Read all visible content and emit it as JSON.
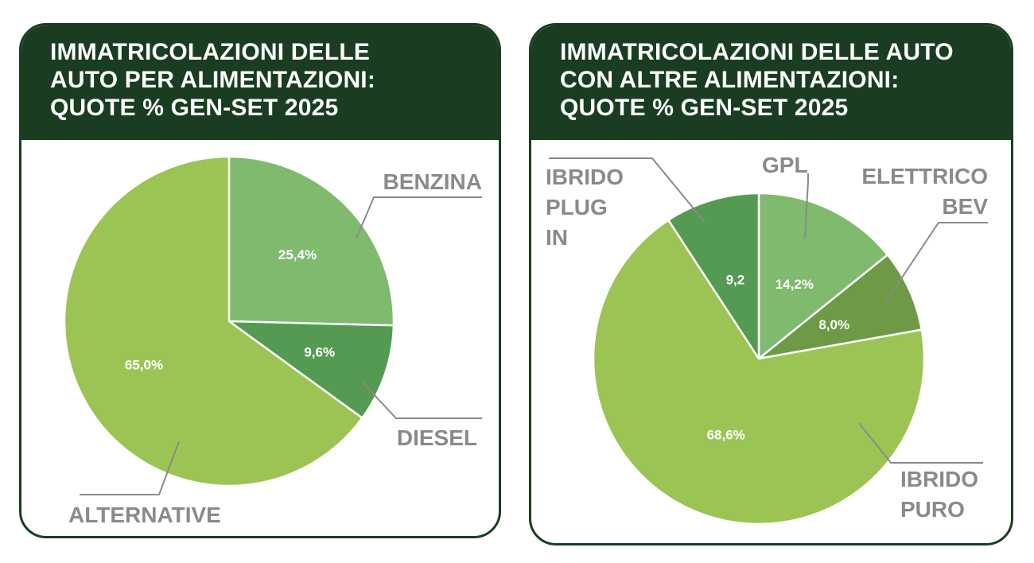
{
  "colors": {
    "header_bg": "#1a3d22",
    "label_gray": "#8a8a8a",
    "light_green": "#7fba6e",
    "mid_green": "#559a52",
    "olive_green": "#6f9a45",
    "lime_green": "#9cc455"
  },
  "chart_data": [
    {
      "type": "pie",
      "title_lines": [
        "IMMATRICOLAZIONI DELLE",
        "AUTO PER ALIMENTAZIONI:",
        "QUOTE % GEN-SET 2025"
      ],
      "slices": [
        {
          "label": "BENZINA",
          "value": 25.4,
          "value_label": "25,4%",
          "color": "#7fba6e"
        },
        {
          "label": "DIESEL",
          "value": 9.6,
          "value_label": "9,6%",
          "color": "#559a52"
        },
        {
          "label": "ALTERNATIVE",
          "value": 65.0,
          "value_label": "65,0%",
          "color": "#9cc455"
        }
      ]
    },
    {
      "type": "pie",
      "title_lines": [
        "IMMATRICOLAZIONI DELLE AUTO",
        "CON ALTRE ALIMENTAZIONI:",
        "QUOTE % GEN-SET 2025"
      ],
      "slices": [
        {
          "label_lines": [
            "GPL"
          ],
          "value": 14.2,
          "value_label": "14,2%",
          "color": "#7fba6e"
        },
        {
          "label_lines": [
            "ELETTRICO",
            "BEV"
          ],
          "value": 8.0,
          "value_label": "8,0%",
          "color": "#6f9a45"
        },
        {
          "label_lines": [
            "IBRIDO",
            "PURO"
          ],
          "value": 68.6,
          "value_label": "68,6%",
          "color": "#9cc455"
        },
        {
          "label_lines": [
            "IBRIDO",
            "PLUG",
            "IN"
          ],
          "value": 9.2,
          "value_label": "9,2",
          "color": "#559a52"
        }
      ]
    }
  ]
}
